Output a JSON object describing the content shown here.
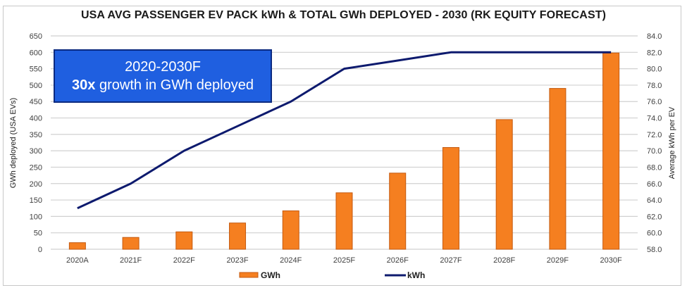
{
  "chart_data": {
    "type": "bar",
    "title": "USA AVG PASSENGER EV PACK kWh & TOTAL GWh DEPLOYED - 2030 (RK EQUITY FORECAST)",
    "categories": [
      "2020A",
      "2021F",
      "2022F",
      "2023F",
      "2024F",
      "2025F",
      "2026F",
      "2027F",
      "2028F",
      "2029F",
      "2030F"
    ],
    "series": [
      {
        "name": "GWh",
        "type": "bar",
        "axis": "left",
        "color": "#f57f20",
        "values": [
          20,
          36,
          53,
          80,
          117,
          172,
          232,
          310,
          395,
          490,
          598
        ]
      },
      {
        "name": "kWh",
        "type": "line",
        "axis": "right",
        "color": "#0d1a6e",
        "values": [
          63.0,
          66.0,
          70.0,
          73.0,
          76.0,
          80.0,
          81.0,
          82.0,
          82.0,
          82.0,
          82.0
        ]
      }
    ],
    "ylabel": "GWh deployed (USA EVs)",
    "ylim": [
      0,
      650
    ],
    "yticks": [
      "0",
      "50",
      "100",
      "150",
      "200",
      "250",
      "300",
      "350",
      "400",
      "450",
      "500",
      "550",
      "600",
      "650"
    ],
    "y2label": "Average kWh per EV",
    "y2lim": [
      58.0,
      84.0
    ],
    "y2ticks": [
      "58.0",
      "60.0",
      "62.0",
      "64.0",
      "66.0",
      "68.0",
      "70.0",
      "72.0",
      "74.0",
      "76.0",
      "78.0",
      "80.0",
      "82.0",
      "84.0"
    ],
    "grid": true,
    "legend": {
      "placement": "bottom",
      "entries": [
        "GWh",
        "kWh"
      ]
    },
    "annotation": {
      "line1": "2020-2030F",
      "line2_bold": "30x",
      "line2_rest": " growth in GWh deployed",
      "fill": "#1f5fe0"
    }
  }
}
